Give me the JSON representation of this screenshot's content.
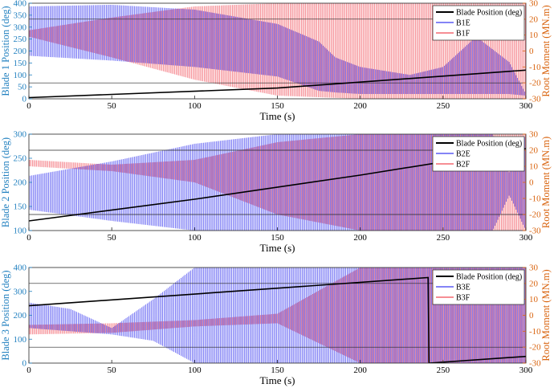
{
  "colors": {
    "blade_position": "#000000",
    "edge": "#3a3af0",
    "flap": "#f04a55",
    "left_axis": "#1f7fbf",
    "right_axis": "#d9640f",
    "grid": "#262626"
  },
  "chart_data": [
    {
      "type": "line",
      "xlabel": "Time (s)",
      "ylabel_left": "Blade 1 Position (deg)",
      "ylabel_right": "Root Moment (MN.m)",
      "xlim": [
        0,
        300
      ],
      "ylim_left": [
        0,
        400
      ],
      "ylim_right": [
        -30,
        30
      ],
      "x_ticks": [
        0,
        50,
        100,
        150,
        200,
        250,
        300
      ],
      "y_ticks_left": [
        0,
        50,
        100,
        150,
        200,
        250,
        300,
        350,
        400
      ],
      "y_ticks_right": [
        -30,
        -20,
        -10,
        0,
        10,
        20,
        30
      ],
      "legend": [
        "Blade Position (deg)",
        "B1E",
        "B1F"
      ],
      "series": [
        {
          "name": "Blade Position (deg)",
          "axis": "left",
          "x": [
            0,
            150,
            300
          ],
          "y": [
            5,
            45,
            120
          ]
        },
        {
          "name": "B1E",
          "axis": "right",
          "x": [
            0,
            50,
            100,
            150,
            175,
            185,
            200,
            230,
            250,
            270,
            290,
            300
          ],
          "upper": [
            28,
            29,
            26,
            17,
            6,
            -4,
            -10,
            -15,
            -10,
            9,
            -7,
            -27
          ],
          "lower": [
            -3,
            -6,
            -10,
            -16,
            -25,
            -26,
            -27,
            -27,
            -27,
            -27,
            -27,
            -28
          ]
        },
        {
          "name": "B1F",
          "axis": "right",
          "x": [
            0,
            50,
            100,
            150,
            200,
            250,
            300
          ],
          "upper": [
            13,
            21,
            28,
            30,
            30,
            30,
            30
          ],
          "lower": [
            9,
            -4,
            -18,
            -28,
            -30,
            -30,
            -30
          ]
        }
      ]
    },
    {
      "type": "line",
      "xlabel": "Time (s)",
      "ylabel_left": "Blade 2 Position (deg)",
      "ylabel_right": "Root Moment (MN.m)",
      "xlim": [
        0,
        300
      ],
      "ylim_left": [
        100,
        300
      ],
      "ylim_right": [
        -30,
        30
      ],
      "x_ticks": [
        0,
        50,
        100,
        150,
        200,
        250,
        300
      ],
      "y_ticks_left": [
        100,
        150,
        200,
        250,
        300
      ],
      "y_ticks_right": [
        -30,
        -20,
        -10,
        0,
        10,
        20,
        30
      ],
      "legend": [
        "Blade Position (deg)",
        "B2E",
        "B2F"
      ],
      "series": [
        {
          "name": "Blade Position (deg)",
          "axis": "left",
          "x": [
            0,
            100,
            200,
            300
          ],
          "y": [
            120,
            165,
            215,
            270
          ]
        },
        {
          "name": "B2E",
          "axis": "right",
          "x": [
            0,
            50,
            100,
            150,
            200,
            250,
            280,
            290,
            300
          ],
          "upper": [
            4,
            13,
            24,
            30,
            30,
            30,
            30,
            6,
            30
          ],
          "lower": [
            -17,
            -24,
            -30,
            -30,
            -30,
            -30,
            -30,
            -8,
            -30
          ]
        },
        {
          "name": "B2F",
          "axis": "right",
          "x": [
            0,
            50,
            100,
            150,
            200,
            250,
            300
          ],
          "upper": [
            14,
            11,
            14,
            25,
            30,
            30,
            30
          ],
          "lower": [
            10,
            7,
            0,
            -20,
            -30,
            -30,
            -30
          ]
        }
      ]
    },
    {
      "type": "line",
      "xlabel": "Time (s)",
      "ylabel_left": "Blade 3 Position (deg)",
      "ylabel_right": "Root Moment (MN.m)",
      "xlim": [
        0,
        300
      ],
      "ylim_left": [
        0,
        400
      ],
      "ylim_right": [
        -30,
        30
      ],
      "x_ticks": [
        0,
        50,
        100,
        150,
        200,
        250,
        300
      ],
      "y_ticks_left": [
        0,
        100,
        200,
        300,
        400
      ],
      "y_ticks_right": [
        -30,
        -20,
        -10,
        0,
        10,
        20,
        30
      ],
      "legend": [
        "Blade Position (deg)",
        "B3E",
        "B3F"
      ],
      "series": [
        {
          "name": "Blade Position (deg)",
          "axis": "left",
          "x": [
            0,
            241,
            241.5,
            300
          ],
          "y": [
            240,
            358,
            0,
            28
          ]
        },
        {
          "name": "B3E",
          "axis": "right",
          "x": [
            0,
            25,
            50,
            75,
            100,
            150,
            200,
            250,
            300
          ],
          "upper": [
            8,
            4,
            -8,
            10,
            30,
            30,
            30,
            30,
            30
          ],
          "lower": [
            -8,
            -10,
            -12,
            -16,
            -30,
            -30,
            -30,
            -30,
            -30
          ]
        },
        {
          "name": "B3F",
          "axis": "right",
          "x": [
            0,
            50,
            100,
            150,
            200,
            250,
            300
          ],
          "upper": [
            -6,
            -5,
            -3,
            1,
            30,
            30,
            30
          ],
          "lower": [
            -12,
            -11,
            -7,
            -5,
            -30,
            -30,
            -30
          ]
        }
      ]
    }
  ]
}
